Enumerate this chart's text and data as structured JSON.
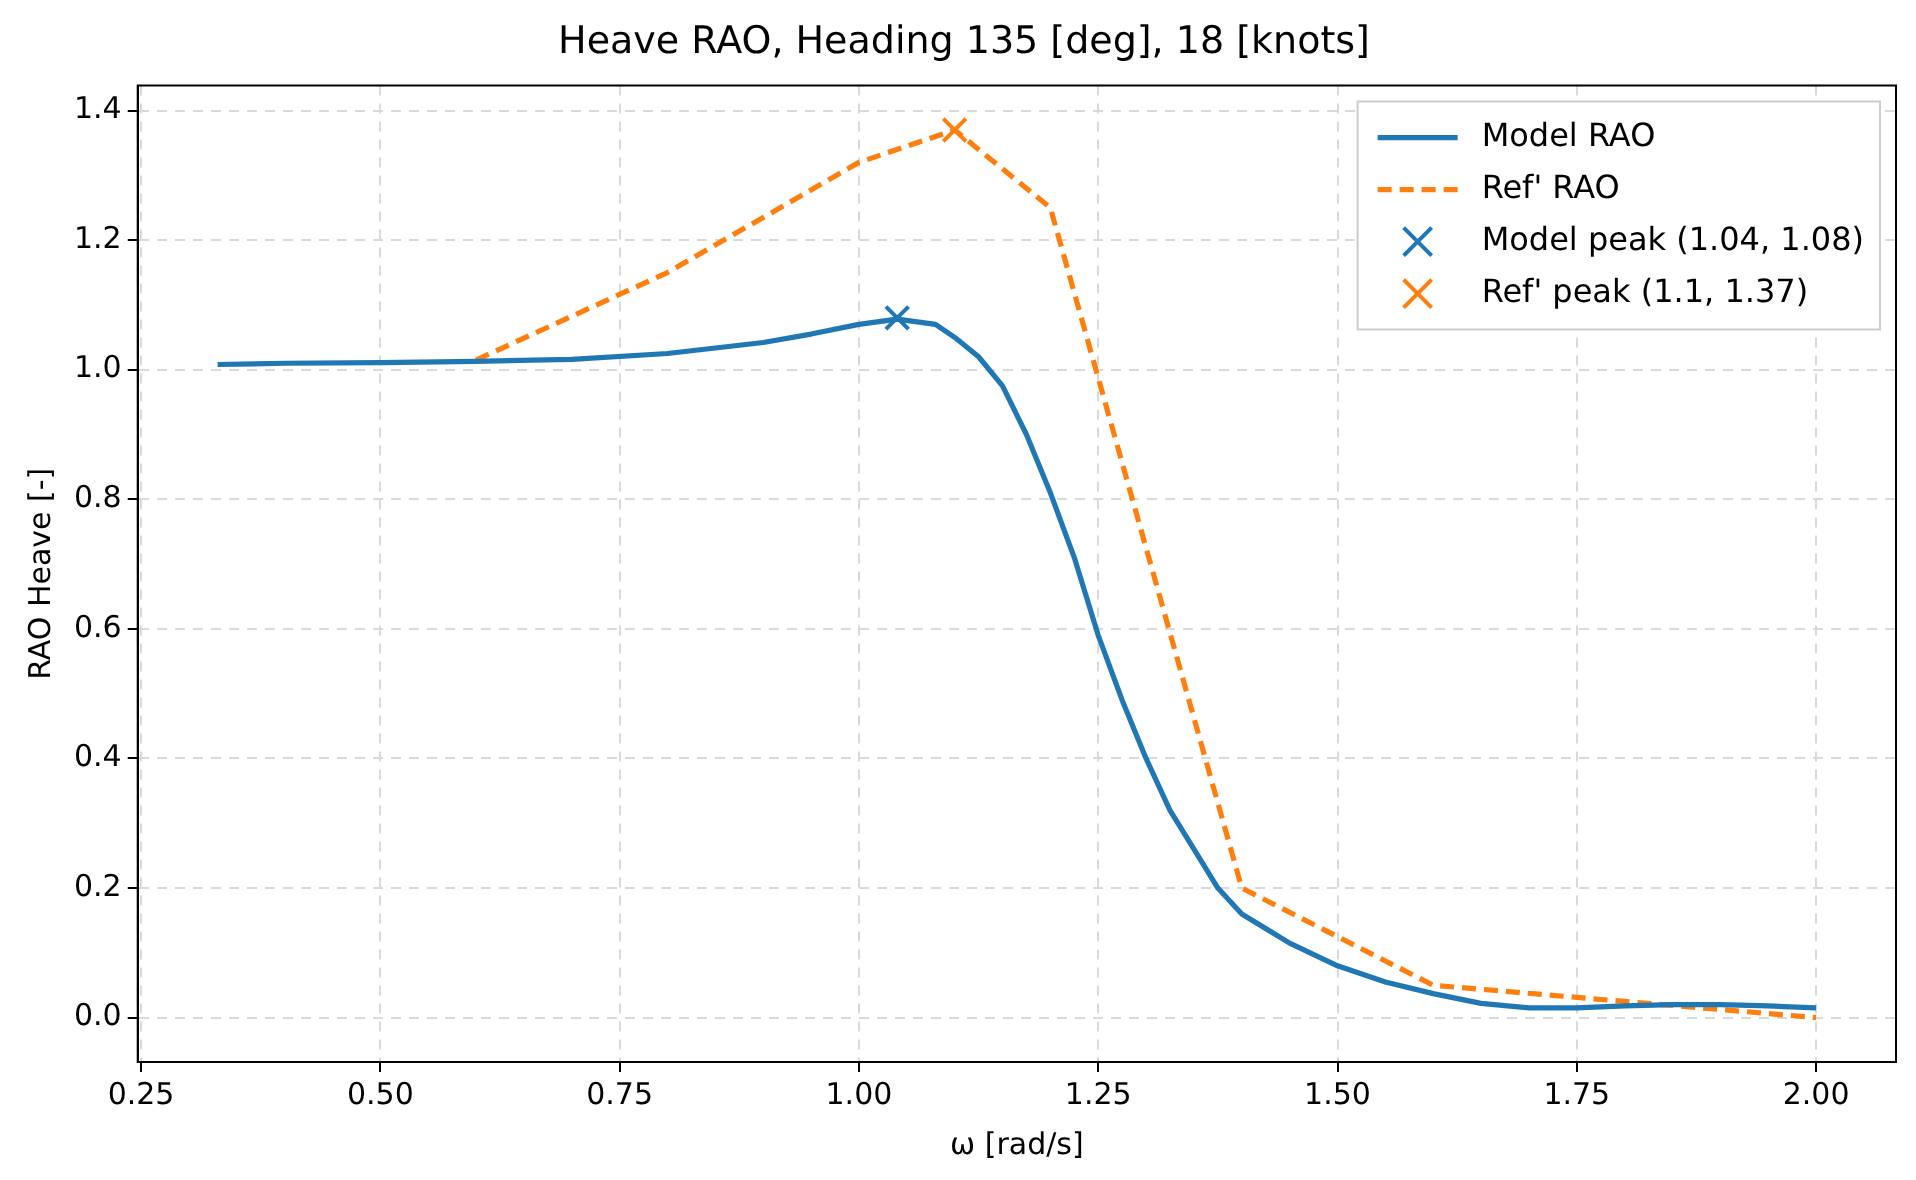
{
  "chart_data": {
    "type": "line",
    "title": "Heave RAO, Heading 135 [deg], 18 [knots]",
    "xlabel": "ω [rad/s]",
    "ylabel": "RAO Heave [-]",
    "xlim": [
      0.2465,
      2.0835
    ],
    "ylim": [
      -0.0685,
      1.4385
    ],
    "xticks": [
      {
        "value": 0.25,
        "label": "0.25"
      },
      {
        "value": 0.5,
        "label": "0.50"
      },
      {
        "value": 0.75,
        "label": "0.75"
      },
      {
        "value": 1,
        "label": "1.00"
      },
      {
        "value": 1.25,
        "label": "1.25"
      },
      {
        "value": 1.5,
        "label": "1.50"
      },
      {
        "value": 1.75,
        "label": "1.75"
      },
      {
        "value": 2,
        "label": "2.00"
      }
    ],
    "yticks": [
      {
        "value": 0,
        "label": "0.0"
      },
      {
        "value": 0.2,
        "label": "0.2"
      },
      {
        "value": 0.4,
        "label": "0.4"
      },
      {
        "value": 0.6,
        "label": "0.6"
      },
      {
        "value": 0.8,
        "label": "0.8"
      },
      {
        "value": 1,
        "label": "1.0"
      },
      {
        "value": 1.2,
        "label": "1.2"
      },
      {
        "value": 1.4,
        "label": "1.4"
      }
    ],
    "grid": true,
    "legend": "top right",
    "series": [
      {
        "name": "Model RAO",
        "color": "#1f77b4",
        "line_style": "solid",
        "marker": "none",
        "x": [
          0.33,
          0.4,
          0.5,
          0.6,
          0.7,
          0.8,
          0.9,
          0.95,
          1.0,
          1.04,
          1.08,
          1.1,
          1.125,
          1.15,
          1.175,
          1.2,
          1.225,
          1.25,
          1.275,
          1.3,
          1.325,
          1.35,
          1.375,
          1.4,
          1.45,
          1.5,
          1.55,
          1.6,
          1.65,
          1.7,
          1.75,
          1.8,
          1.85,
          1.9,
          1.95,
          2.0
        ],
        "values": [
          1.008,
          1.01,
          1.011,
          1.013,
          1.016,
          1.025,
          1.042,
          1.055,
          1.07,
          1.078,
          1.07,
          1.05,
          1.02,
          0.975,
          0.9,
          0.81,
          0.71,
          0.59,
          0.49,
          0.4,
          0.32,
          0.26,
          0.2,
          0.16,
          0.115,
          0.08,
          0.055,
          0.037,
          0.022,
          0.015,
          0.015,
          0.018,
          0.02,
          0.02,
          0.018,
          0.015
        ]
      },
      {
        "name": "Ref' RAO",
        "color": "#ff7f0e",
        "line_style": "dashed",
        "marker": "none",
        "x": [
          0.6,
          0.8,
          1.0,
          1.1,
          1.2,
          1.4,
          1.6,
          1.8,
          2.0
        ],
        "values": [
          1.015,
          1.15,
          1.32,
          1.37,
          1.25,
          0.2,
          0.05,
          0.025,
          0.0
        ]
      },
      {
        "name": "Model peak (1.04, 1.08)",
        "type": "scatter",
        "color": "#1f77b4",
        "marker": "cross",
        "x": [
          1.04
        ],
        "values": [
          1.08
        ]
      },
      {
        "name": "Ref' peak (1.1, 1.37)",
        "type": "scatter",
        "color": "#ff7f0e",
        "marker": "cross",
        "x": [
          1.1
        ],
        "values": [
          1.37
        ]
      }
    ]
  }
}
